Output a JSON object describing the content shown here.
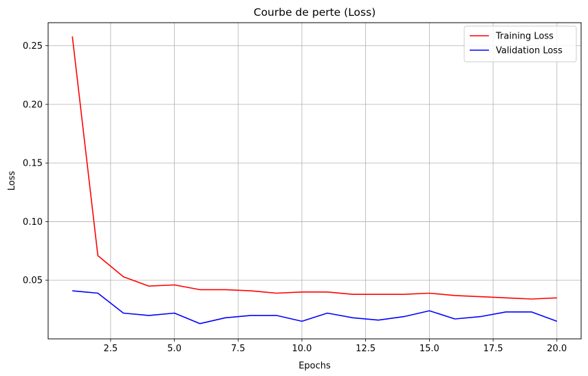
{
  "chart_data": {
    "type": "line",
    "title": "Courbe de perte (Loss)",
    "xlabel": "Epochs",
    "ylabel": "Loss",
    "xlim": [
      0.05,
      20.95
    ],
    "ylim": [
      0.0,
      0.2697
    ],
    "xticks": [
      2.5,
      5.0,
      7.5,
      10.0,
      12.5,
      15.0,
      17.5,
      20.0
    ],
    "xtick_labels": [
      "2.5",
      "5.0",
      "7.5",
      "10.0",
      "12.5",
      "15.0",
      "17.5",
      "20.0"
    ],
    "yticks": [
      0.05,
      0.1,
      0.15,
      0.2,
      0.25
    ],
    "ytick_labels": [
      "0.05",
      "0.10",
      "0.15",
      "0.20",
      "0.25"
    ],
    "grid": true,
    "legend_position": "top-right",
    "x": [
      1,
      2,
      3,
      4,
      5,
      6,
      7,
      8,
      9,
      10,
      11,
      12,
      13,
      14,
      15,
      16,
      17,
      18,
      19,
      20
    ],
    "series": [
      {
        "name": "Training Loss",
        "color": "#ff0000",
        "values": [
          0.258,
          0.071,
          0.053,
          0.045,
          0.046,
          0.042,
          0.042,
          0.041,
          0.039,
          0.04,
          0.04,
          0.038,
          0.038,
          0.038,
          0.039,
          0.037,
          0.036,
          0.035,
          0.034,
          0.035
        ]
      },
      {
        "name": "Validation Loss",
        "color": "#0000ff",
        "values": [
          0.041,
          0.039,
          0.022,
          0.02,
          0.022,
          0.013,
          0.018,
          0.02,
          0.02,
          0.015,
          0.022,
          0.018,
          0.016,
          0.019,
          0.024,
          0.017,
          0.019,
          0.023,
          0.023,
          0.015
        ]
      }
    ]
  }
}
